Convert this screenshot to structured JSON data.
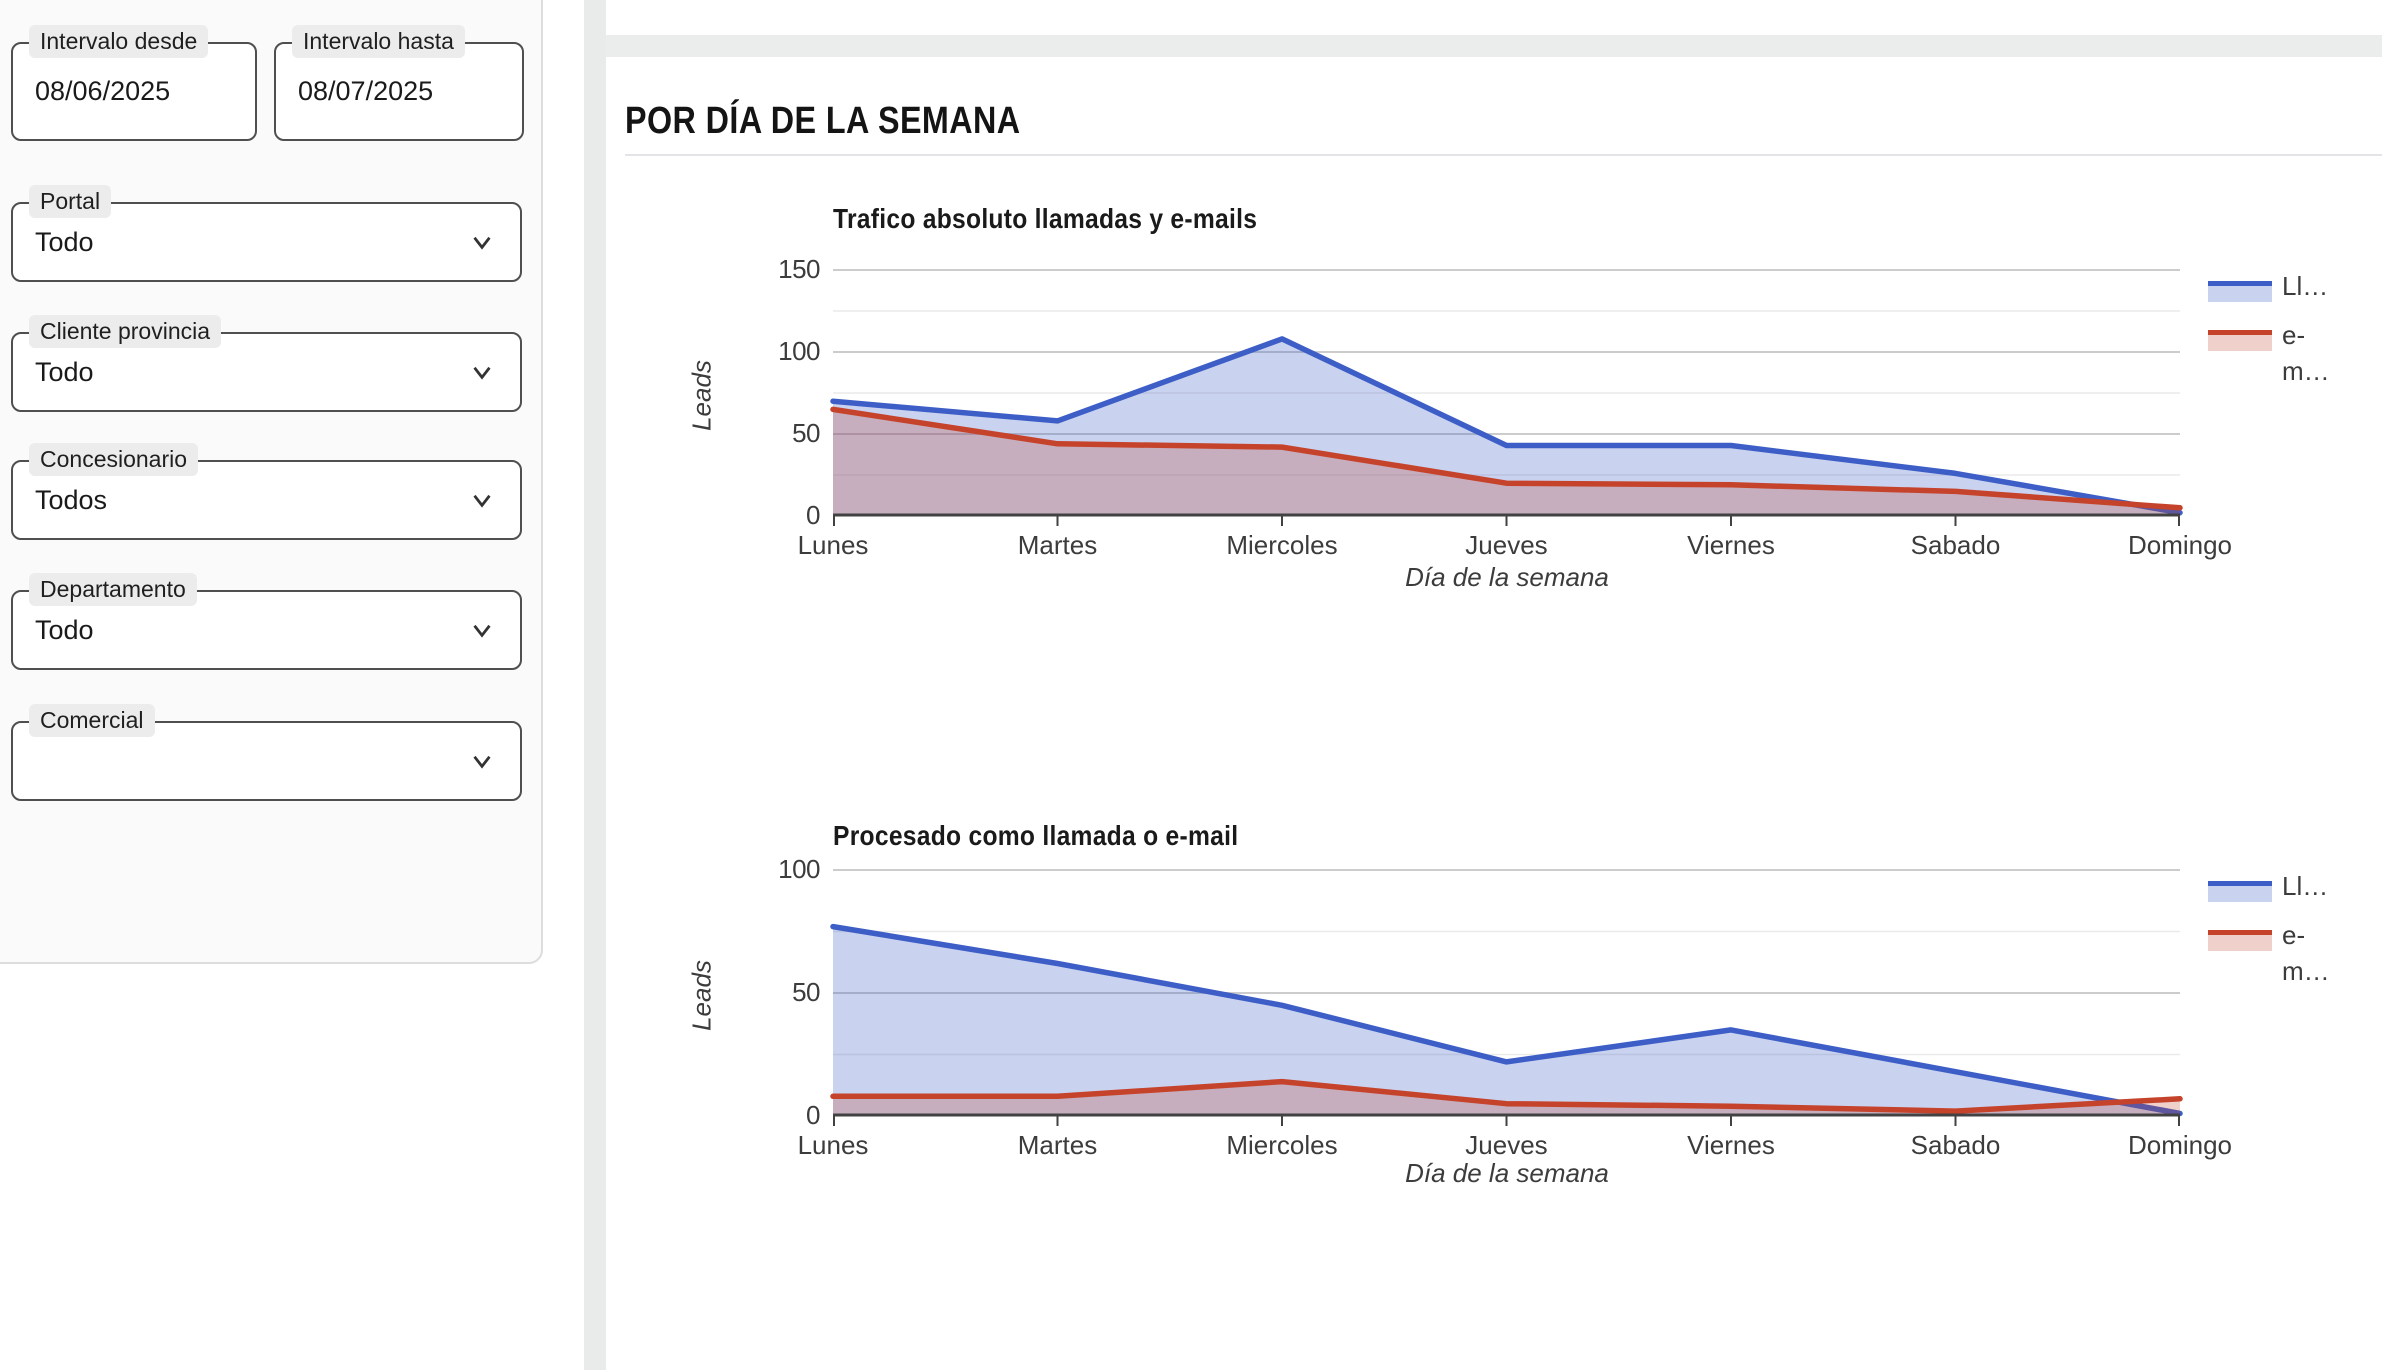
{
  "sidebar": {
    "fields": [
      {
        "type": "date",
        "label": "Intervalo desde",
        "value": "08/06/2025"
      },
      {
        "type": "date",
        "label": "Intervalo hasta",
        "value": "08/07/2025"
      },
      {
        "type": "select",
        "label": "Portal",
        "value": "Todo"
      },
      {
        "type": "select",
        "label": "Cliente provincia",
        "value": "Todo"
      },
      {
        "type": "select",
        "label": "Concesionario",
        "value": "Todos"
      },
      {
        "type": "select",
        "label": "Departamento",
        "value": "Todo"
      },
      {
        "type": "select",
        "label": "Comercial",
        "value": ""
      }
    ]
  },
  "main": {
    "section_title": "POR DÍA DE LA SEMANA"
  },
  "theme": {
    "blue_line": "#3D5EC6",
    "blue_fill": "rgba(61,94,198,0.28)",
    "red_line": "#C5432B",
    "red_fill": "rgba(197,67,43,0.25)",
    "grid_major": "#CCCCCC",
    "grid_minor": "#EAEAEA",
    "axis_line": "#424242",
    "panel_bg": "#FAFAFA",
    "canvas_gap": "#EBECEC"
  },
  "chart_data": [
    {
      "type": "area",
      "title": "Trafico absoluto llamadas y e-mails",
      "categories": [
        "Lunes",
        "Martes",
        "Miercoles",
        "Jueves",
        "Viernes",
        "Sabado",
        "Domingo"
      ],
      "series": [
        {
          "name": "Ll…",
          "color": "#3D5EC6",
          "fill": "rgba(61,94,198,0.28)",
          "values": [
            70,
            58,
            108,
            43,
            43,
            26,
            2
          ]
        },
        {
          "name": "e-m…",
          "color": "#C5432B",
          "fill": "rgba(197,67,43,0.25)",
          "values": [
            65,
            44,
            42,
            20,
            19,
            15,
            5
          ]
        }
      ],
      "xlabel": "Día de la semana",
      "ylabel": "Leads",
      "ylim": [
        0,
        150
      ],
      "yticks": [
        0,
        50,
        100,
        150
      ],
      "grid": true,
      "legend_position": "right",
      "legend_lines": [
        [
          "Ll…"
        ],
        [
          "e-",
          "m…"
        ]
      ]
    },
    {
      "type": "area",
      "title": "Procesado como llamada o e-mail",
      "categories": [
        "Lunes",
        "Martes",
        "Miercoles",
        "Jueves",
        "Viernes",
        "Sabado",
        "Domingo"
      ],
      "series": [
        {
          "name": "Ll…",
          "color": "#3D5EC6",
          "fill": "rgba(61,94,198,0.28)",
          "values": [
            77,
            62,
            45,
            22,
            35,
            18,
            1
          ]
        },
        {
          "name": "e-m…",
          "color": "#C5432B",
          "fill": "rgba(197,67,43,0.25)",
          "values": [
            8,
            8,
            14,
            5,
            4,
            2,
            7
          ]
        }
      ],
      "xlabel": "Día de la semana",
      "ylabel": "Leads",
      "ylim": [
        0,
        100
      ],
      "yticks": [
        0,
        50,
        100
      ],
      "grid": true,
      "legend_position": "right",
      "legend_lines": [
        [
          "Ll…"
        ],
        [
          "e-",
          "m…"
        ]
      ]
    }
  ]
}
